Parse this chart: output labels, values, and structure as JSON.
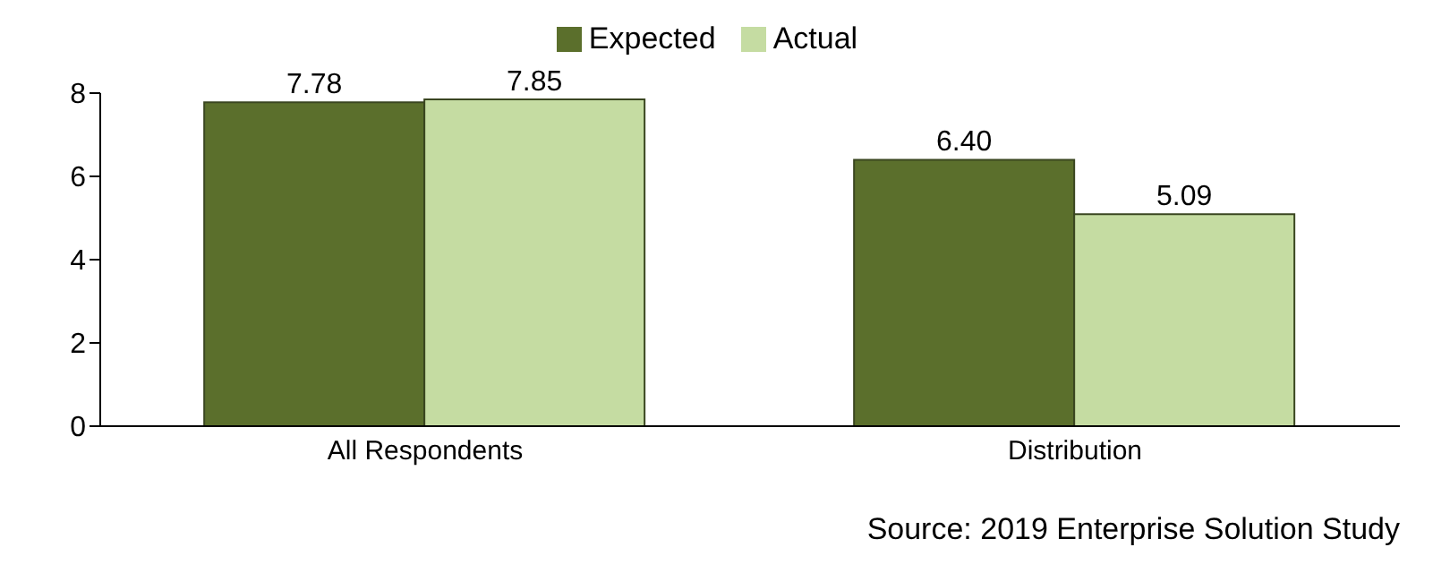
{
  "chart_data": {
    "type": "bar",
    "categories": [
      "All Respondents",
      "Distribution"
    ],
    "series": [
      {
        "name": "Expected",
        "color": "#5b6f2c",
        "values": [
          7.78,
          6.4
        ],
        "value_labels": [
          "7.78",
          "6.40"
        ]
      },
      {
        "name": "Actual",
        "color": "#c5dca2",
        "values": [
          7.85,
          5.09
        ],
        "value_labels": [
          "7.85",
          "5.09"
        ]
      }
    ],
    "ylim": [
      0,
      8
    ],
    "yticks": [
      0,
      2,
      4,
      6,
      8
    ],
    "grid": false,
    "legend": "top",
    "annotations": [
      "Source: 2019 Enterprise Solution Study"
    ]
  }
}
